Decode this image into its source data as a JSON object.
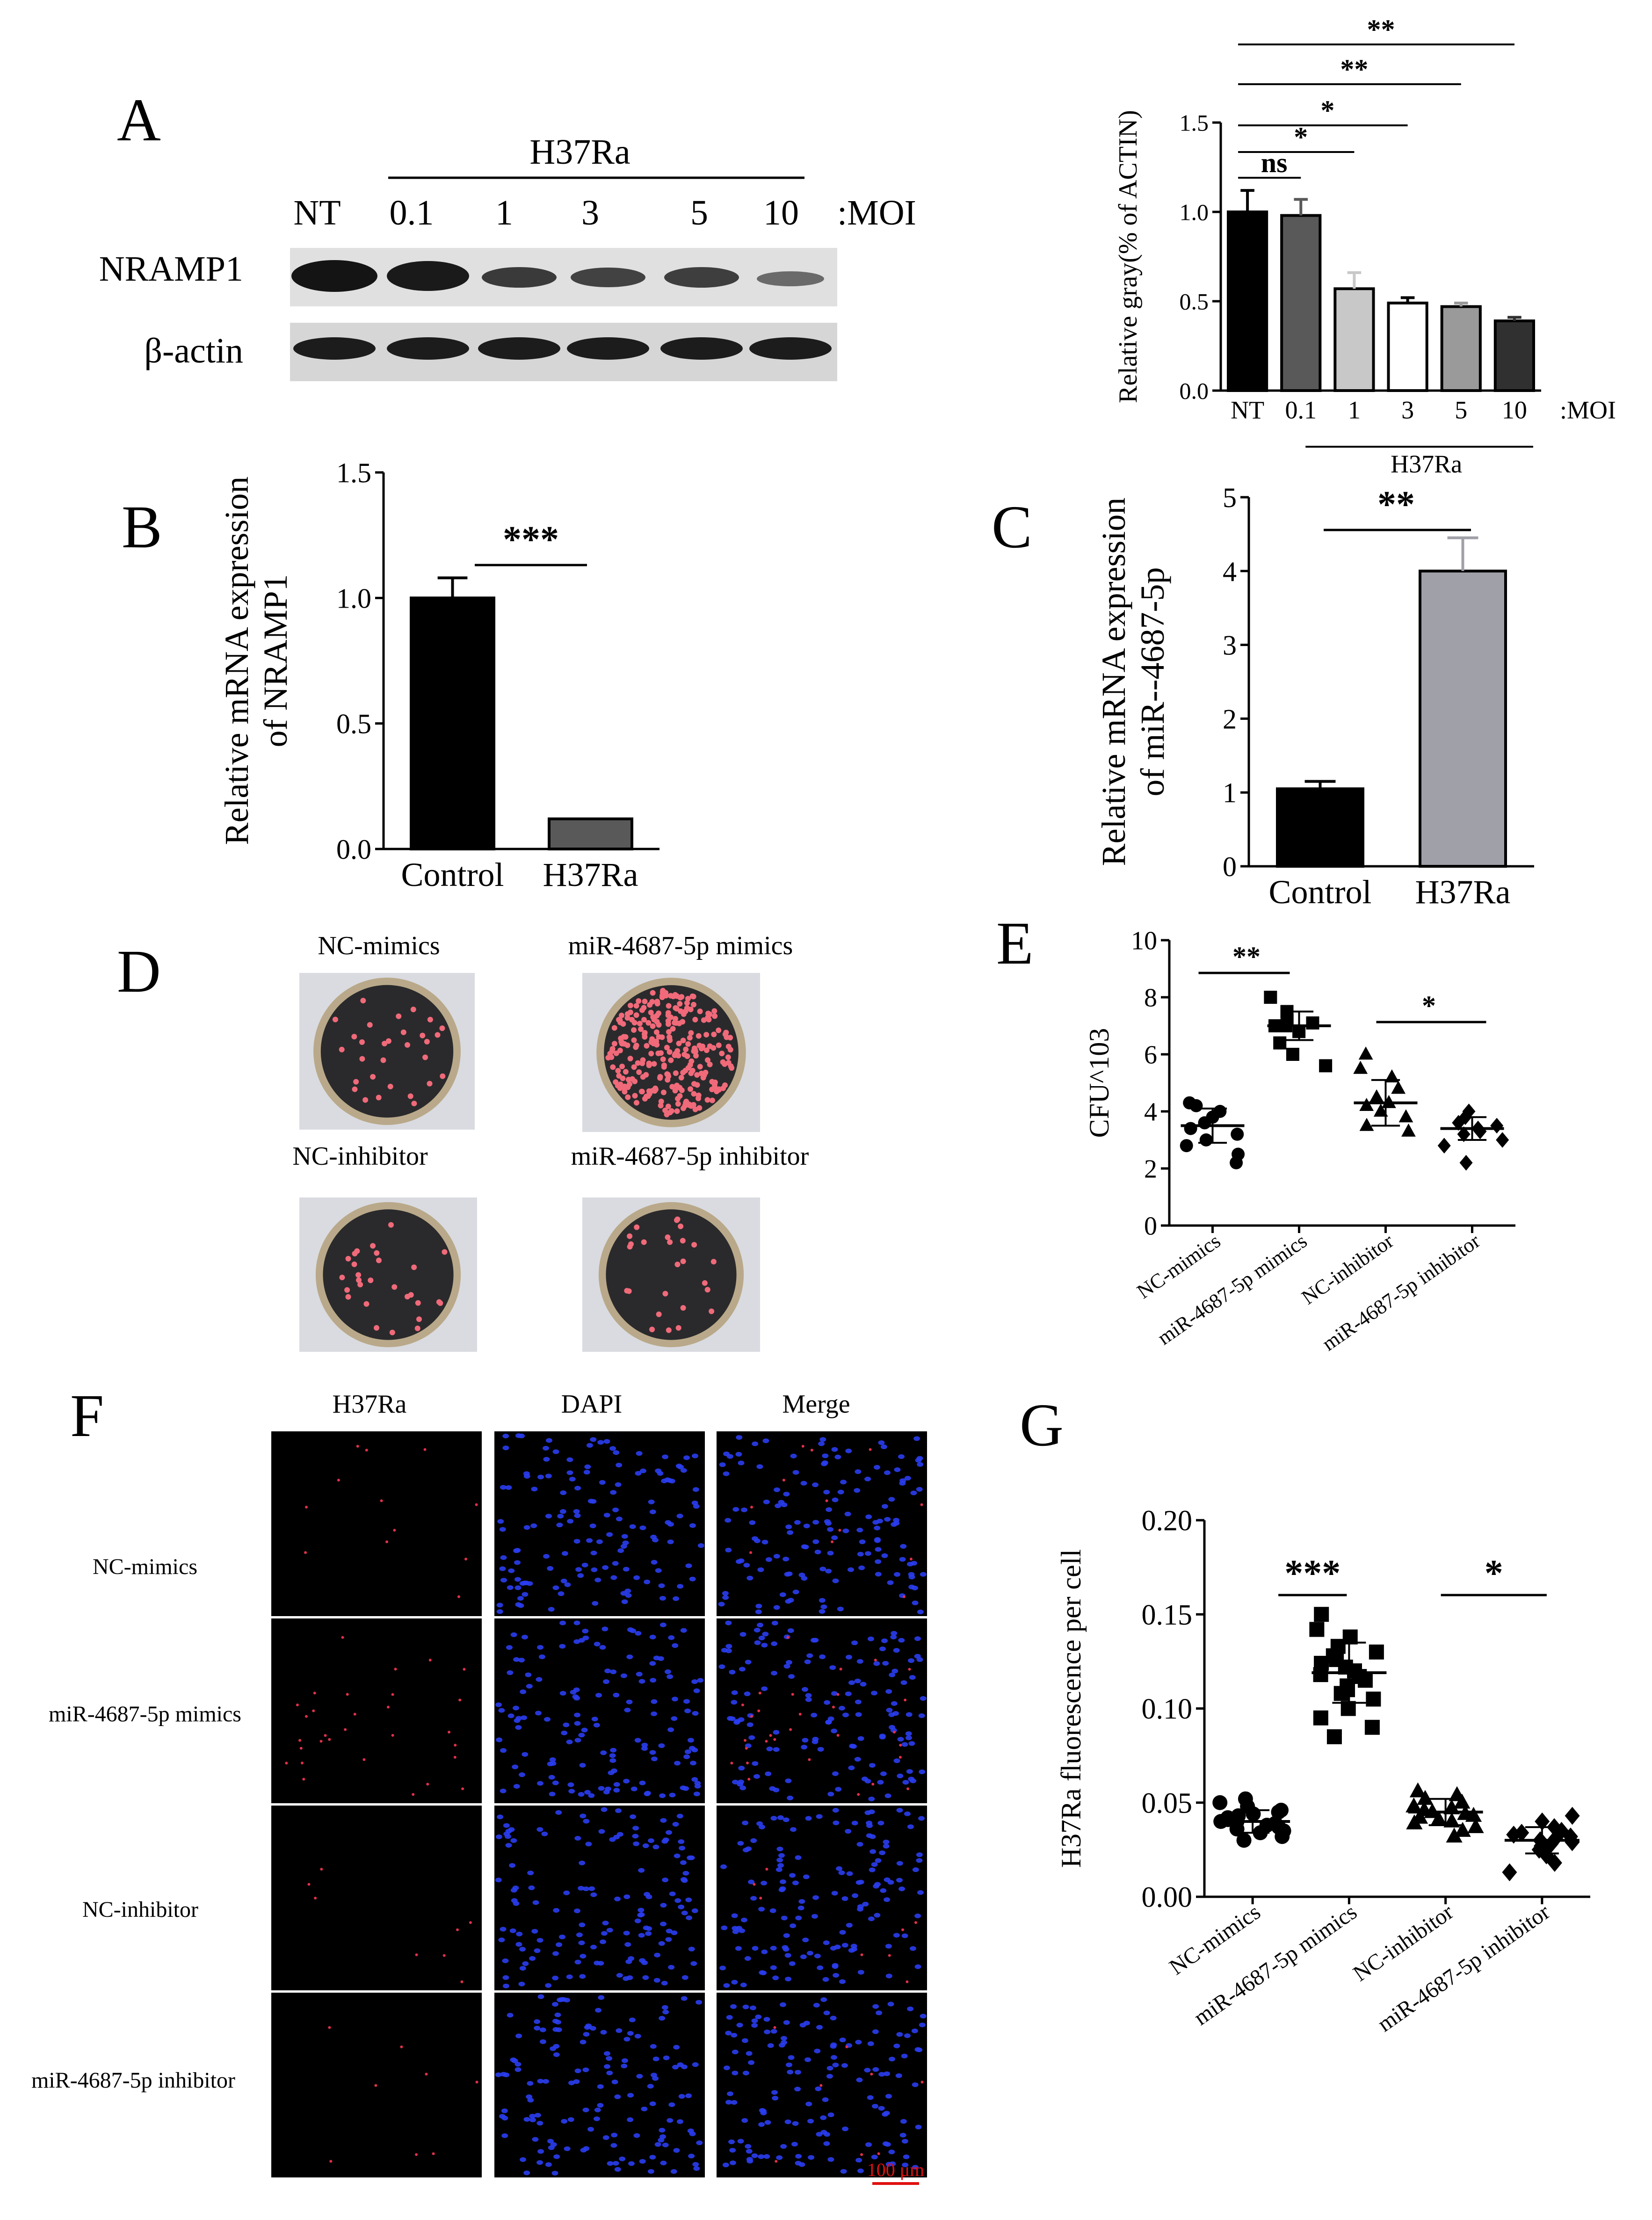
{
  "panel_letters": [
    "A",
    "B",
    "C",
    "D",
    "E",
    "F",
    "G"
  ],
  "western_blot": {
    "group_label": "H37Ra",
    "lane_labels": [
      "NT",
      "0.1",
      "1",
      "3",
      "5",
      "10"
    ],
    "unit_label": ":MOI",
    "row_labels": [
      "NRAMP1",
      "β-actin"
    ]
  },
  "plates": {
    "labels": [
      "NC-mimics",
      "miR-4687-5p mimics",
      "NC-inhibitor",
      "miR-4687-5p inhibitor"
    ]
  },
  "microscopy": {
    "column_labels": [
      "H37Ra",
      "DAPI",
      "Merge"
    ],
    "row_labels": [
      "NC-mimics",
      "miR-4687-5p mimics",
      "NC-inhibitor",
      "miR-4687-5p inhibitor"
    ],
    "scale_bar": "100 μm"
  },
  "colors": {
    "red_signal": "#e0304a",
    "blue_nuclei": "#2a3df0",
    "plate_colony": "#f06a7a"
  },
  "chart_data": [
    {
      "id": "A-right",
      "type": "bar",
      "categories": [
        "NT",
        "0.1",
        "1",
        "3",
        "5",
        "10"
      ],
      "values": [
        1.0,
        0.98,
        0.57,
        0.49,
        0.47,
        0.39
      ],
      "errors": [
        0.12,
        0.09,
        0.09,
        0.03,
        0.02,
        0.02
      ],
      "bar_colors": [
        "#000000",
        "#595959",
        "#c8c8c8",
        "#ffffff",
        "#9a9a9a",
        "#303030"
      ],
      "ylabel": "Relative gray(% of ACTIN)",
      "ylim": [
        0,
        1.5
      ],
      "yticks": [
        "0.0",
        "0.5",
        "1.0",
        "1.5"
      ],
      "group_label": "H37Ra",
      "unit_label": ":MOI",
      "significance": [
        "ns",
        "*",
        "*",
        "**",
        "**"
      ]
    },
    {
      "id": "B",
      "type": "bar",
      "categories": [
        "Control",
        "H37Ra"
      ],
      "values": [
        1.0,
        0.12
      ],
      "errors": [
        0.08,
        0.0
      ],
      "bar_colors": [
        "#000000",
        "#595959"
      ],
      "ylabel": [
        "Relative mRNA expression",
        "of NRAMP1"
      ],
      "ylim": [
        0,
        1.5
      ],
      "yticks": [
        "0.0",
        "0.5",
        "1.0",
        "1.5"
      ],
      "significance": "***"
    },
    {
      "id": "C",
      "type": "bar",
      "categories": [
        "Control",
        "H37Ra"
      ],
      "values": [
        1.05,
        4.0
      ],
      "errors": [
        0.1,
        0.45
      ],
      "bar_colors": [
        "#000000",
        "#a0a0a8"
      ],
      "ylabel": [
        "Relative mRNA expression",
        "of miR--4687-5p"
      ],
      "ylim": [
        0,
        5
      ],
      "yticks": [
        "0",
        "1",
        "2",
        "3",
        "4",
        "5"
      ],
      "significance": "**"
    },
    {
      "id": "E",
      "type": "scatter",
      "categories": [
        "NC-mimics",
        "miR-4687-5p mimics",
        "NC-inhibitor",
        "miR-4687-5p inhibitor"
      ],
      "markers": [
        "circle",
        "square",
        "triangle",
        "diamond"
      ],
      "series": [
        {
          "values": [
            2.2,
            2.5,
            2.8,
            3.0,
            3.2,
            3.4,
            3.6,
            3.8,
            4.0,
            4.2,
            4.3
          ]
        },
        {
          "values": [
            5.6,
            6.0,
            6.4,
            6.8,
            7.0,
            7.0,
            7.1,
            7.2,
            7.5,
            8.0
          ]
        },
        {
          "values": [
            3.3,
            3.5,
            3.8,
            4.0,
            4.2,
            4.3,
            4.5,
            4.8,
            5.2,
            5.5,
            6.0
          ]
        },
        {
          "values": [
            2.2,
            2.8,
            3.0,
            3.2,
            3.3,
            3.4,
            3.5,
            3.6,
            3.8,
            4.0
          ]
        }
      ],
      "means": [
        3.5,
        7.0,
        4.3,
        3.4
      ],
      "sds": [
        0.6,
        0.5,
        0.8,
        0.4
      ],
      "ylabel": "CFU^103",
      "ylim": [
        0,
        10
      ],
      "yticks": [
        "0",
        "2",
        "4",
        "6",
        "8",
        "10"
      ],
      "significance": [
        "**",
        "*"
      ]
    },
    {
      "id": "G",
      "type": "scatter",
      "categories": [
        "NC-mimics",
        "miR-4687-5p mimics",
        "NC-inhibitor",
        "miR-4687-5p inhibitor"
      ],
      "markers": [
        "circle",
        "square",
        "triangle",
        "diamond"
      ],
      "series": [
        {
          "values": [
            0.03,
            0.032,
            0.034,
            0.035,
            0.036,
            0.037,
            0.038,
            0.039,
            0.04,
            0.04,
            0.041,
            0.042,
            0.043,
            0.044,
            0.045,
            0.046,
            0.048,
            0.05,
            0.052
          ]
        },
        {
          "values": [
            0.085,
            0.09,
            0.095,
            0.1,
            0.105,
            0.108,
            0.11,
            0.112,
            0.115,
            0.117,
            0.118,
            0.12,
            0.122,
            0.124,
            0.126,
            0.128,
            0.13,
            0.133,
            0.138,
            0.142,
            0.15
          ]
        },
        {
          "values": [
            0.032,
            0.035,
            0.037,
            0.039,
            0.04,
            0.041,
            0.042,
            0.043,
            0.044,
            0.045,
            0.046,
            0.047,
            0.048,
            0.05,
            0.052,
            0.054,
            0.056
          ]
        },
        {
          "values": [
            0.013,
            0.018,
            0.022,
            0.025,
            0.027,
            0.028,
            0.029,
            0.03,
            0.031,
            0.032,
            0.033,
            0.034,
            0.035,
            0.037,
            0.04,
            0.043
          ]
        }
      ],
      "means": [
        0.04,
        0.119,
        0.045,
        0.03
      ],
      "sds": [
        0.006,
        0.016,
        0.007,
        0.007
      ],
      "ylabel": "H37Ra fluorescence per cell",
      "ylim": [
        0,
        0.2
      ],
      "yticks": [
        "0.00",
        "0.05",
        "0.10",
        "0.15",
        "0.20"
      ],
      "significance": [
        "***",
        "*"
      ]
    }
  ]
}
